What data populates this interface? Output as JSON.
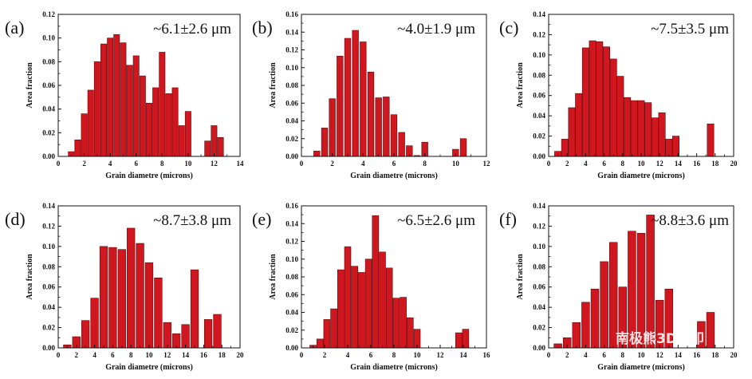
{
  "figure": {
    "watermark": "南极熊3D打印"
  },
  "chart_data": [
    {
      "type": "bar",
      "panel_label": "(a)",
      "annotation": "~6.1±2.6 μm",
      "xlabel": "Grain diametre (microns)",
      "ylabel": "Area fraction",
      "xlim": [
        0,
        14
      ],
      "ylim": [
        0,
        0.12
      ],
      "xticks": [
        0,
        2,
        4,
        6,
        8,
        10,
        12,
        14
      ],
      "yticks": [
        0.0,
        0.02,
        0.04,
        0.06,
        0.08,
        0.1,
        0.12
      ],
      "ytick_labels": [
        "0.00",
        "0.02",
        "0.04",
        "0.06",
        "0.08",
        "0.10",
        "0.12"
      ],
      "bar_width": 0.45,
      "x": [
        1.0,
        1.5,
        2.0,
        2.5,
        3.0,
        3.5,
        4.0,
        4.5,
        5.0,
        5.5,
        6.0,
        6.5,
        7.0,
        7.5,
        8.0,
        8.5,
        9.0,
        9.5,
        10.0,
        11.5,
        12.0,
        12.5
      ],
      "values": [
        0.004,
        0.014,
        0.036,
        0.056,
        0.08,
        0.095,
        0.1,
        0.103,
        0.096,
        0.077,
        0.085,
        0.068,
        0.045,
        0.058,
        0.088,
        0.053,
        0.058,
        0.026,
        0.038,
        0.013,
        0.026,
        0.016
      ],
      "color": "#d0161e",
      "grid": false
    },
    {
      "type": "bar",
      "panel_label": "(b)",
      "annotation": "~4.0±1.9 μm",
      "xlabel": "Grain diametre (microns)",
      "ylabel": "Area fraction",
      "xlim": [
        0,
        12
      ],
      "ylim": [
        0,
        0.16
      ],
      "xticks": [
        0,
        2,
        4,
        6,
        8,
        10,
        12
      ],
      "yticks": [
        0.0,
        0.02,
        0.04,
        0.06,
        0.08,
        0.1,
        0.12,
        0.14,
        0.16
      ],
      "ytick_labels": [
        "0.00",
        "0.02",
        "0.04",
        "0.06",
        "0.08",
        "0.10",
        "0.12",
        "0.14",
        "0.16"
      ],
      "bar_width": 0.4,
      "x": [
        1.0,
        1.5,
        2.0,
        2.5,
        3.0,
        3.5,
        4.0,
        4.5,
        5.0,
        5.5,
        6.0,
        6.5,
        7.0,
        7.5,
        8.0,
        10.0,
        10.5
      ],
      "values": [
        0.006,
        0.032,
        0.065,
        0.113,
        0.133,
        0.142,
        0.129,
        0.095,
        0.066,
        0.067,
        0.047,
        0.027,
        0.012,
        0.001,
        0.016,
        0.008,
        0.02
      ],
      "color": "#d0161e",
      "grid": false
    },
    {
      "type": "bar",
      "panel_label": "(c)",
      "annotation": "~7.5±3.5 μm",
      "xlabel": "Grain diametre (microns)",
      "ylabel": "Area fraction",
      "xlim": [
        0,
        20
      ],
      "ylim": [
        0,
        0.14
      ],
      "xticks": [
        0,
        2,
        4,
        6,
        8,
        10,
        12,
        14,
        16,
        18,
        20
      ],
      "yticks": [
        0.0,
        0.02,
        0.04,
        0.06,
        0.08,
        0.1,
        0.12,
        0.14
      ],
      "ytick_labels": [
        "0.00",
        "0.02",
        "0.04",
        "0.06",
        "0.08",
        "0.10",
        "0.12",
        "0.14"
      ],
      "bar_width": 0.72,
      "x": [
        1.0,
        1.75,
        2.5,
        3.25,
        4.0,
        4.75,
        5.5,
        6.25,
        7.0,
        7.75,
        8.5,
        9.25,
        10.0,
        10.75,
        11.5,
        12.25,
        13.0,
        13.75,
        17.5
      ],
      "values": [
        0.005,
        0.017,
        0.048,
        0.062,
        0.107,
        0.114,
        0.113,
        0.108,
        0.096,
        0.079,
        0.058,
        0.055,
        0.055,
        0.053,
        0.038,
        0.043,
        0.017,
        0.02,
        0.032
      ],
      "color": "#d0161e",
      "grid": false
    },
    {
      "type": "bar",
      "panel_label": "(d)",
      "annotation": "~8.7±3.8 μm",
      "xlabel": "Grain diametre (microns)",
      "ylabel": "Area fraction",
      "xlim": [
        0,
        20
      ],
      "ylim": [
        0,
        0.14
      ],
      "xticks": [
        0,
        2,
        4,
        6,
        8,
        10,
        12,
        14,
        16,
        18,
        20
      ],
      "yticks": [
        0.0,
        0.02,
        0.04,
        0.06,
        0.08,
        0.1,
        0.12,
        0.14
      ],
      "ytick_labels": [
        "0.00",
        "0.02",
        "0.04",
        "0.06",
        "0.08",
        "0.10",
        "0.12",
        "0.14"
      ],
      "bar_width": 0.85,
      "x": [
        1.0,
        2.0,
        3.0,
        4.0,
        5.0,
        6.0,
        7.0,
        8.0,
        9.0,
        10.0,
        11.0,
        12.0,
        13.0,
        14.0,
        15.0,
        16.5,
        17.5
      ],
      "values": [
        0.003,
        0.011,
        0.027,
        0.049,
        0.1,
        0.099,
        0.097,
        0.118,
        0.103,
        0.084,
        0.069,
        0.025,
        0.014,
        0.023,
        0.077,
        0.028,
        0.033
      ],
      "color": "#d0161e",
      "grid": false
    },
    {
      "type": "bar",
      "panel_label": "(e)",
      "annotation": "~6.5±2.6 μm",
      "xlabel": "Grain diametre (microns)",
      "ylabel": "Area fraction",
      "xlim": [
        0,
        16
      ],
      "ylim": [
        0,
        0.16
      ],
      "xticks": [
        0,
        2,
        4,
        6,
        8,
        10,
        12,
        14,
        16
      ],
      "yticks": [
        0.0,
        0.02,
        0.04,
        0.06,
        0.08,
        0.1,
        0.12,
        0.14,
        0.16
      ],
      "ytick_labels": [
        "0.00",
        "0.02",
        "0.04",
        "0.06",
        "0.08",
        "0.10",
        "0.12",
        "0.14",
        "0.16"
      ],
      "bar_width": 0.55,
      "x": [
        1.0,
        1.6,
        2.2,
        2.8,
        3.4,
        4.0,
        4.6,
        5.2,
        5.8,
        6.4,
        7.0,
        7.6,
        8.2,
        8.8,
        9.4,
        10.0,
        13.6,
        14.2
      ],
      "values": [
        0.003,
        0.01,
        0.032,
        0.044,
        0.088,
        0.114,
        0.092,
        0.085,
        0.1,
        0.149,
        0.108,
        0.09,
        0.056,
        0.057,
        0.034,
        0.021,
        0.017,
        0.021
      ],
      "color": "#d0161e",
      "grid": false
    },
    {
      "type": "bar",
      "panel_label": "(f)",
      "annotation": "~8.8±3.6 μm",
      "xlabel": "Grain diametre (microns)",
      "ylabel": "Area fraction",
      "xlim": [
        0,
        20
      ],
      "ylim": [
        0,
        0.14
      ],
      "xticks": [
        0,
        2,
        4,
        6,
        8,
        10,
        12,
        14,
        16,
        18,
        20
      ],
      "yticks": [
        0.0,
        0.02,
        0.04,
        0.06,
        0.08,
        0.1,
        0.12,
        0.14
      ],
      "ytick_labels": [
        "0.00",
        "0.02",
        "0.04",
        "0.06",
        "0.08",
        "0.10",
        "0.12",
        "0.14"
      ],
      "bar_width": 0.85,
      "x": [
        1.0,
        2.0,
        3.0,
        4.0,
        5.0,
        6.0,
        7.0,
        8.0,
        9.0,
        10.0,
        11.0,
        12.0,
        13.0,
        16.5,
        17.5
      ],
      "values": [
        0.004,
        0.01,
        0.025,
        0.045,
        0.058,
        0.085,
        0.104,
        0.06,
        0.115,
        0.113,
        0.131,
        0.047,
        0.058,
        0.026,
        0.035
      ],
      "color": "#d0161e",
      "grid": false
    }
  ]
}
